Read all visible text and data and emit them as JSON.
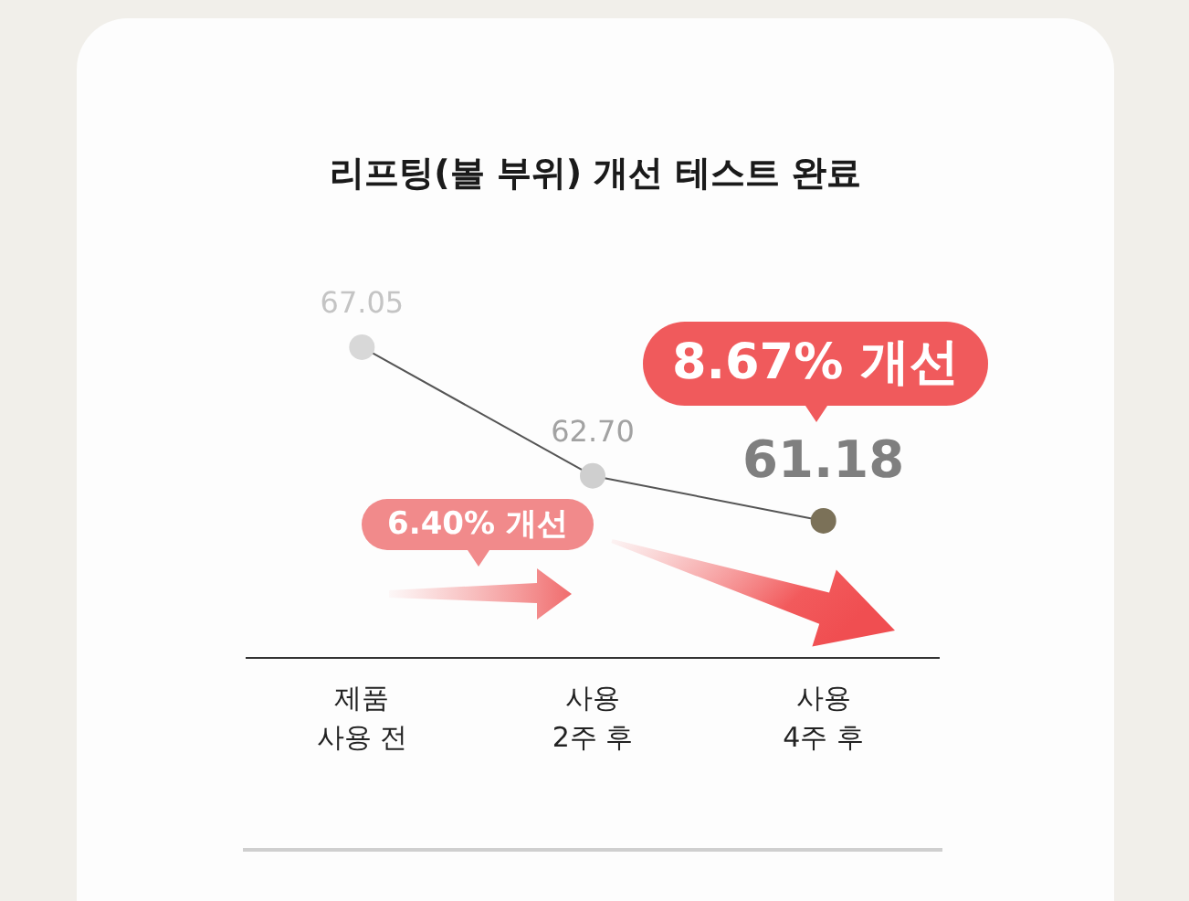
{
  "chart_data": {
    "type": "line",
    "title": "리프팅(볼 부위) 개선 테스트 완료",
    "categories": [
      "제품\n사용 전",
      "사용\n2주 후",
      "사용\n4주 후"
    ],
    "series": [
      {
        "color": "#555555",
        "colors": [
          "#d8d8d8",
          "#cfcfcf",
          "#7b7158"
        ],
        "values": [
          67.05,
          62.7,
          61.18
        ],
        "value_labels": [
          "67.05",
          "62.70",
          "61.18"
        ]
      }
    ],
    "marker": "circle",
    "tick_labels": "x",
    "annotations": [
      "6.40% 개선",
      "8.67% 개선"
    ]
  }
}
